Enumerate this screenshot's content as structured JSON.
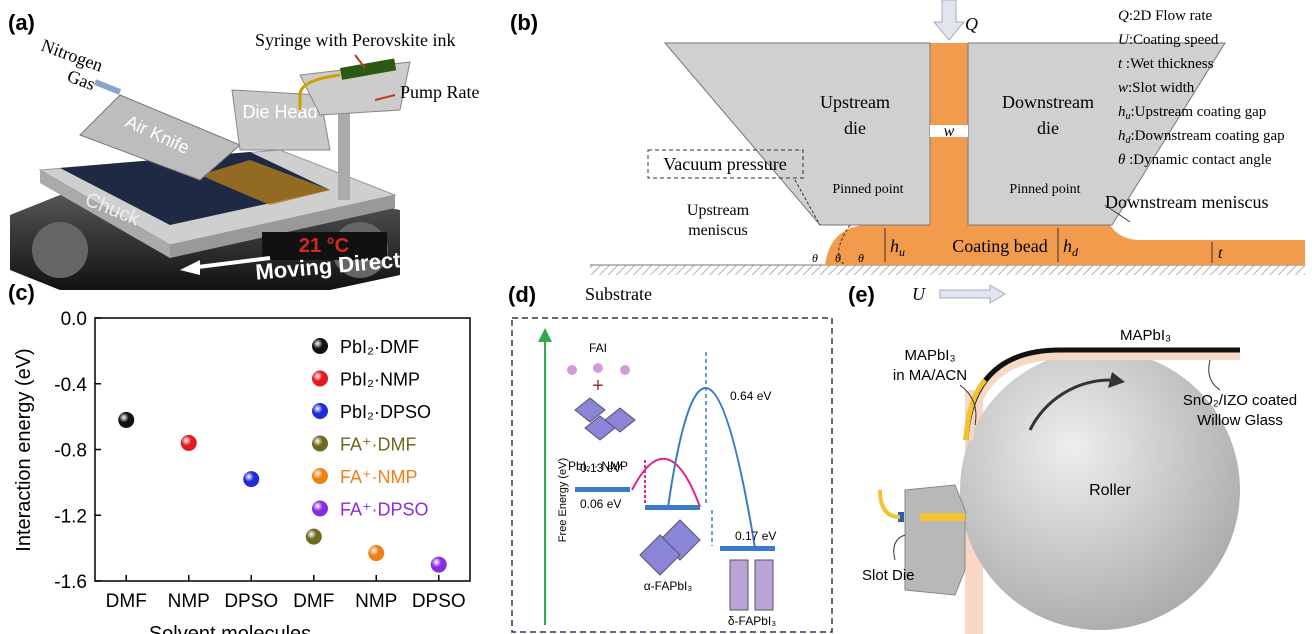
{
  "panel_a": {
    "label": "(a)",
    "nitrogen_gas": [
      "Nitrogen",
      "Gas"
    ],
    "syringe": "Syringe with Perovskite ink",
    "pump_rate": "Pump Rate",
    "air_knife": "Air Knife",
    "die_head": "Die Head",
    "chuck": "Chuck",
    "temperature": "21 °C",
    "moving_direction": "Moving Direction"
  },
  "panel_b": {
    "label": "(b)",
    "flow": "Q",
    "legend": [
      {
        "sym": "Q",
        "desc": ":2D Flow rate"
      },
      {
        "sym": "U",
        "desc": ":Coating speed"
      },
      {
        "sym": "t",
        "desc": " :Wet thickness"
      },
      {
        "sym": "w",
        "desc": ":Slot width"
      },
      {
        "sym": "h",
        "sub": "u",
        "desc": ":Upstream coating gap"
      },
      {
        "sym": "h",
        "sub": "d",
        "desc": ":Downstream coating gap"
      },
      {
        "sym": "θ",
        "desc": " :Dynamic contact angle"
      }
    ],
    "upstream_die": [
      "Upstream",
      "die"
    ],
    "downstream_die": [
      "Downstream",
      "die"
    ],
    "slot_width": "w",
    "vacuum_pressure": "Vacuum pressure",
    "pinned_point": "Pinned point",
    "upstream_meniscus": [
      "Upstream",
      "meniscus"
    ],
    "downstream_meniscus": "Downstream meniscus",
    "coating_bead": "Coating bead",
    "hu": {
      "sym": "h",
      "sub": "u"
    },
    "hd": {
      "sym": "h",
      "sub": "d"
    },
    "thickness": "t",
    "substrate": "Substrate",
    "speed": "U",
    "theta": "θ"
  },
  "chart_data": {
    "type": "scatter",
    "panel_label": "(c)",
    "x_label": "Solvent molecules",
    "y_label": "Interaction energy (eV)",
    "categories": [
      "DMF",
      "NMP",
      "DPSO",
      "DMF",
      "NMP",
      "DPSO"
    ],
    "series": [
      {
        "name": "PbI₂·DMF",
        "color": "#111111",
        "values": [
          -0.62,
          null,
          null,
          null,
          null,
          null
        ]
      },
      {
        "name": "PbI₂·NMP",
        "color": "#e41a1c",
        "values": [
          null,
          -0.76,
          null,
          null,
          null,
          null
        ]
      },
      {
        "name": "PbI₂·DPSO",
        "color": "#1f2bd6",
        "values": [
          null,
          null,
          -0.98,
          null,
          null,
          null
        ]
      },
      {
        "name": "FA⁺·DMF",
        "color": "#6b6a1f",
        "values": [
          null,
          null,
          null,
          -1.33,
          null,
          null
        ]
      },
      {
        "name": "FA⁺·NMP",
        "color": "#f07f14",
        "values": [
          null,
          null,
          null,
          null,
          -1.43,
          null
        ]
      },
      {
        "name": "FA⁺·DPSO",
        "color": "#8a2be2",
        "values": [
          null,
          null,
          null,
          null,
          null,
          -1.5
        ]
      }
    ],
    "ylim": [
      -1.6,
      0
    ],
    "yticks": [
      {
        "value": 0,
        "label": "0.0"
      },
      -0.4,
      -0.8,
      -1.2,
      -1.6
    ],
    "legend": "upper right",
    "grid": false
  },
  "panel_d": {
    "label": "(d)",
    "fai": "FAI",
    "y_axis": "Free Energy (eV)",
    "pbi2_nmp": "PbI₂ · NMP",
    "barrier1": "0.13 eV",
    "step1": "0.06 eV",
    "barrier2": "0.64 eV",
    "step2": "0.17 eV",
    "alpha": "α-FAPbI₃",
    "delta": "δ-FAPbI₃"
  },
  "panel_e": {
    "label": "(e)",
    "mapbi3": "MAPbI₃",
    "ink": [
      "MAPbI₃",
      "in MA/ACN"
    ],
    "substrate": [
      "SnO₂/IZO coated",
      "Willow Glass"
    ],
    "roller": "Roller",
    "slot_die": "Slot Die"
  }
}
